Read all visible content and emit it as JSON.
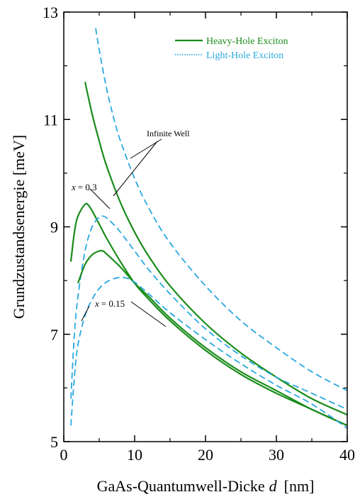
{
  "chart_data": {
    "type": "line",
    "xlabel_prefix": "GaAs-Quantumwell-Dicke",
    "xlabel_var": "d",
    "xlabel_unit": "[nm]",
    "ylabel": "Grundzustandsenergie  [meV]",
    "xlim": [
      0,
      40
    ],
    "ylim": [
      5,
      13
    ],
    "xticks": [
      0,
      10,
      20,
      30,
      40
    ],
    "yticks": [
      5,
      7,
      9,
      11,
      13
    ],
    "legend_position": "top-right",
    "colors": {
      "heavy": "#1a8c1a",
      "light": "#2aa8e0"
    },
    "legend": [
      {
        "label": "Heavy-Hole Exciton",
        "style": "solid",
        "color": "#1a8c1a"
      },
      {
        "label": "Light-Hole Exciton",
        "style": "dotted",
        "color": "#2aa8e0"
      }
    ],
    "series": [
      {
        "id": "hh-infinite",
        "kind": "heavy",
        "points": [
          [
            3,
            11.7
          ],
          [
            4,
            11.1
          ],
          [
            5,
            10.6
          ],
          [
            6,
            10.15
          ],
          [
            8,
            9.45
          ],
          [
            10,
            8.9
          ],
          [
            12,
            8.45
          ],
          [
            15,
            7.9
          ],
          [
            20,
            7.2
          ],
          [
            25,
            6.65
          ],
          [
            30,
            6.2
          ],
          [
            35,
            5.8
          ],
          [
            40,
            5.5
          ]
        ]
      },
      {
        "id": "lh-infinite",
        "kind": "light",
        "points": [
          [
            4.5,
            12.7
          ],
          [
            5,
            12.3
          ],
          [
            6,
            11.6
          ],
          [
            7,
            11.05
          ],
          [
            8,
            10.6
          ],
          [
            10,
            9.9
          ],
          [
            12,
            9.35
          ],
          [
            15,
            8.7
          ],
          [
            20,
            7.9
          ],
          [
            25,
            7.25
          ],
          [
            30,
            6.75
          ],
          [
            35,
            6.3
          ],
          [
            40,
            5.95
          ]
        ]
      },
      {
        "id": "hh-x03",
        "kind": "heavy",
        "points": [
          [
            1,
            8.35
          ],
          [
            1.5,
            8.9
          ],
          [
            2,
            9.2
          ],
          [
            3,
            9.42
          ],
          [
            3.5,
            9.4
          ],
          [
            4,
            9.3
          ],
          [
            5,
            9.05
          ],
          [
            6,
            8.8
          ],
          [
            8,
            8.35
          ],
          [
            10,
            7.95
          ],
          [
            12,
            7.65
          ],
          [
            15,
            7.25
          ],
          [
            20,
            6.7
          ],
          [
            25,
            6.25
          ],
          [
            30,
            5.9
          ],
          [
            35,
            5.6
          ],
          [
            40,
            5.3
          ]
        ]
      },
      {
        "id": "lh-x03",
        "kind": "light",
        "points": [
          [
            1,
            5.8
          ],
          [
            1.5,
            7.0
          ],
          [
            2,
            7.7
          ],
          [
            3,
            8.55
          ],
          [
            4,
            9.0
          ],
          [
            5,
            9.18
          ],
          [
            5.5,
            9.2
          ],
          [
            6,
            9.17
          ],
          [
            7,
            9.05
          ],
          [
            8,
            8.9
          ],
          [
            10,
            8.55
          ],
          [
            12,
            8.2
          ],
          [
            15,
            7.75
          ],
          [
            20,
            7.1
          ],
          [
            25,
            6.6
          ],
          [
            30,
            6.2
          ],
          [
            35,
            5.9
          ],
          [
            40,
            5.6
          ]
        ]
      },
      {
        "id": "hh-x015",
        "kind": "heavy",
        "points": [
          [
            2,
            7.95
          ],
          [
            3,
            8.3
          ],
          [
            4,
            8.48
          ],
          [
            5,
            8.55
          ],
          [
            5.5,
            8.55
          ],
          [
            6,
            8.5
          ],
          [
            8,
            8.25
          ],
          [
            10,
            7.95
          ],
          [
            12,
            7.7
          ],
          [
            15,
            7.3
          ],
          [
            20,
            6.75
          ],
          [
            25,
            6.3
          ],
          [
            30,
            5.95
          ],
          [
            35,
            5.6
          ],
          [
            40,
            5.3
          ]
        ]
      },
      {
        "id": "lh-x015",
        "kind": "light",
        "points": [
          [
            1,
            5.3
          ],
          [
            1.5,
            6.2
          ],
          [
            2,
            6.8
          ],
          [
            3,
            7.35
          ],
          [
            4,
            7.65
          ],
          [
            5,
            7.85
          ],
          [
            6,
            7.97
          ],
          [
            7,
            8.03
          ],
          [
            8,
            8.06
          ],
          [
            9,
            8.04
          ],
          [
            10,
            7.97
          ],
          [
            12,
            7.75
          ],
          [
            15,
            7.4
          ],
          [
            20,
            6.9
          ],
          [
            25,
            6.45
          ],
          [
            30,
            6.05
          ],
          [
            35,
            5.7
          ],
          [
            40,
            5.25
          ]
        ]
      }
    ],
    "annotations": {
      "infinite_well": "Infinite Well",
      "x03_var": "x",
      "x03_value": "= 0.3",
      "x015_var": "x",
      "x015_value": "= 0.15"
    }
  }
}
